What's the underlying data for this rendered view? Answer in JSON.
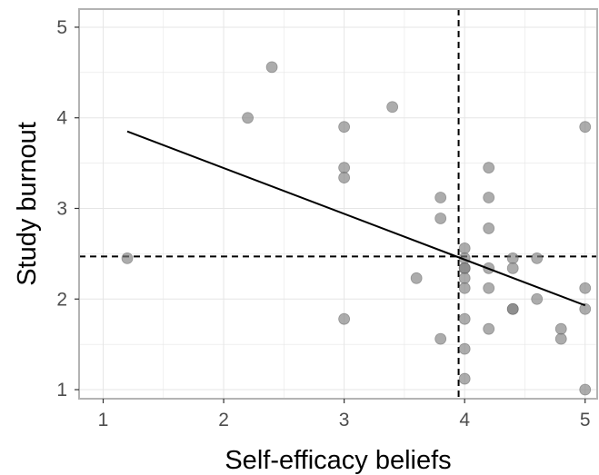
{
  "chart_data": {
    "type": "scatter",
    "title": "",
    "xlabel": "Self-efficacy beliefs",
    "ylabel": "Study burnout",
    "xlim": [
      0.8,
      5.1
    ],
    "ylim": [
      0.9,
      5.2
    ],
    "x_ticks": [
      "1",
      "2",
      "3",
      "4",
      "5"
    ],
    "y_ticks": [
      "1",
      "2",
      "3",
      "4",
      "5"
    ],
    "grid": true,
    "points": [
      {
        "x": 1.2,
        "y": 2.45
      },
      {
        "x": 2.2,
        "y": 4.0
      },
      {
        "x": 2.4,
        "y": 4.56
      },
      {
        "x": 3.0,
        "y": 3.9
      },
      {
        "x": 3.0,
        "y": 3.45
      },
      {
        "x": 3.0,
        "y": 3.34
      },
      {
        "x": 3.0,
        "y": 1.78
      },
      {
        "x": 3.4,
        "y": 4.12
      },
      {
        "x": 3.6,
        "y": 2.23
      },
      {
        "x": 3.8,
        "y": 3.12
      },
      {
        "x": 3.8,
        "y": 2.89
      },
      {
        "x": 3.8,
        "y": 1.56
      },
      {
        "x": 4.0,
        "y": 2.56
      },
      {
        "x": 4.0,
        "y": 2.45
      },
      {
        "x": 4.0,
        "y": 2.34
      },
      {
        "x": 4.0,
        "y": 2.34
      },
      {
        "x": 4.0,
        "y": 2.23
      },
      {
        "x": 4.0,
        "y": 2.12
      },
      {
        "x": 4.0,
        "y": 1.78
      },
      {
        "x": 4.0,
        "y": 1.45
      },
      {
        "x": 4.0,
        "y": 1.12
      },
      {
        "x": 4.2,
        "y": 3.45
      },
      {
        "x": 4.2,
        "y": 3.12
      },
      {
        "x": 4.2,
        "y": 2.78
      },
      {
        "x": 4.2,
        "y": 2.34
      },
      {
        "x": 4.2,
        "y": 2.12
      },
      {
        "x": 4.2,
        "y": 1.67
      },
      {
        "x": 4.4,
        "y": 2.45
      },
      {
        "x": 4.4,
        "y": 2.34
      },
      {
        "x": 4.4,
        "y": 1.89
      },
      {
        "x": 4.4,
        "y": 1.89
      },
      {
        "x": 4.6,
        "y": 2.45
      },
      {
        "x": 4.6,
        "y": 2.0
      },
      {
        "x": 4.8,
        "y": 1.67
      },
      {
        "x": 4.8,
        "y": 1.56
      },
      {
        "x": 5.0,
        "y": 3.9
      },
      {
        "x": 5.0,
        "y": 2.12
      },
      {
        "x": 5.0,
        "y": 1.89
      },
      {
        "x": 5.0,
        "y": 1.0
      }
    ],
    "regression_line": {
      "x": [
        1.2,
        5.0
      ],
      "y": [
        3.85,
        1.93
      ]
    },
    "reference_lines": {
      "vertical_x": 3.95,
      "horizontal_y": 2.47
    },
    "colors": {
      "point": "#808080",
      "line": "#000000",
      "grid": "#e6e6e6",
      "border": "#b3b3b3"
    }
  }
}
